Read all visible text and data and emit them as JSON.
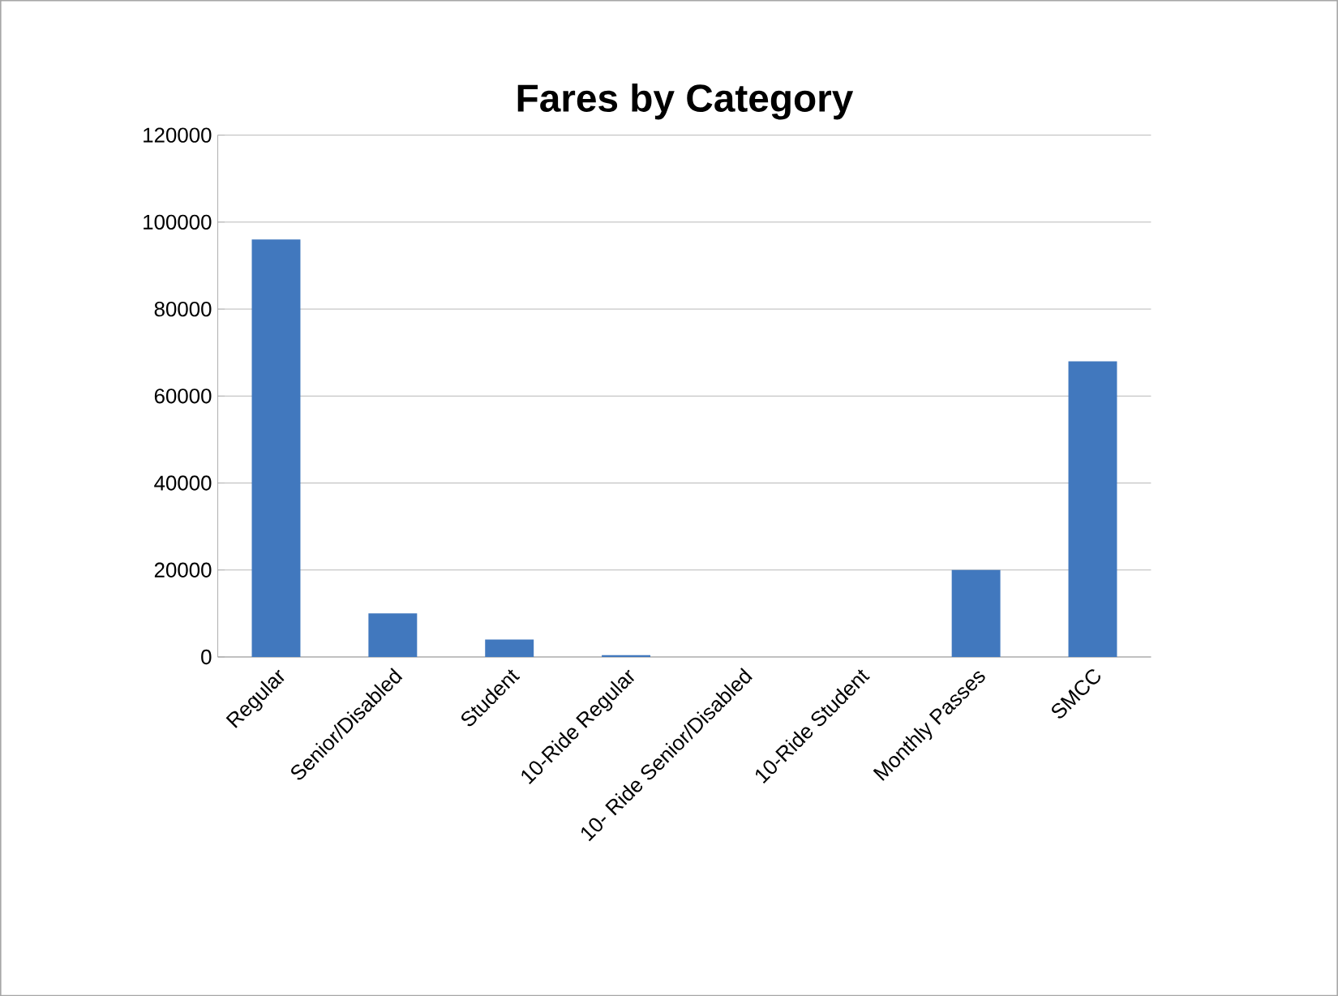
{
  "chart_data": {
    "type": "bar",
    "title": "Fares by Category",
    "categories": [
      "Regular",
      "Senior/Disabled",
      "Student",
      "10-Ride Regular",
      "10- Ride Senior/Disabled",
      "10-Ride Student",
      "Monthly Passes",
      "SMCC"
    ],
    "values": [
      96000,
      10000,
      4000,
      400,
      0,
      0,
      20000,
      68000
    ],
    "color": "#4178be",
    "ylim": [
      0,
      120000
    ],
    "yticks": [
      0,
      20000,
      40000,
      60000,
      80000,
      100000,
      120000
    ],
    "grid": "y"
  }
}
